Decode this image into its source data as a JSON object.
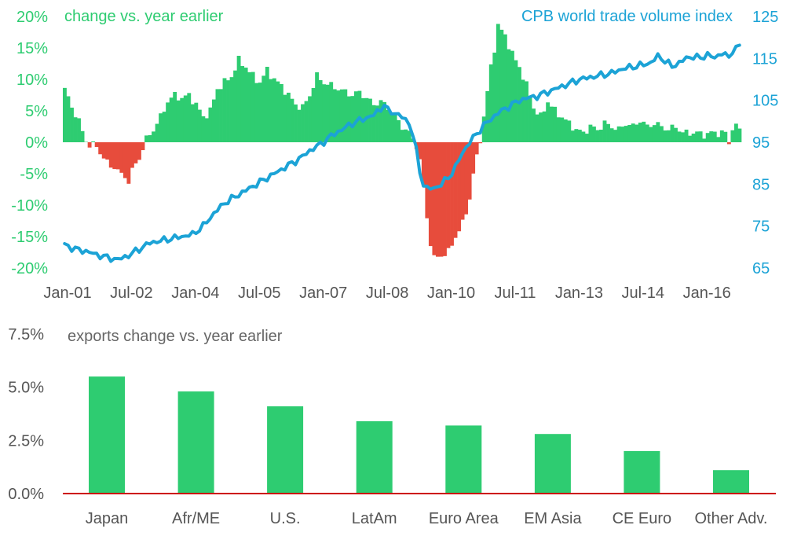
{
  "colors": {
    "positive": "#2ecc71",
    "negative": "#e74c3c",
    "index_line": "#1ca3d6",
    "baseline": "#cc0000",
    "gray_text": "#555555"
  },
  "chart_data": [
    {
      "type": "bar+line",
      "left_title": "change vs. year earlier",
      "right_title": "CPB world trade volume index",
      "left_ticks": [
        "20%",
        "15%",
        "10%",
        "5%",
        "0%",
        "-5%",
        "-10%",
        "-15%",
        "-20%"
      ],
      "left_tick_values": [
        20,
        15,
        10,
        5,
        0,
        -5,
        -10,
        -15,
        -20
      ],
      "ylim_left": [
        -20,
        20
      ],
      "right_ticks": [
        "125",
        "115",
        "105",
        "95",
        "85",
        "75",
        "65"
      ],
      "right_tick_values": [
        125,
        115,
        105,
        95,
        85,
        75,
        65
      ],
      "ylim_right": [
        65,
        125
      ],
      "x_ticks": [
        "Jan-01",
        "Jul-02",
        "Jan-04",
        "Jul-05",
        "Jan-07",
        "Jul-08",
        "Jan-10",
        "Jul-11",
        "Jan-13",
        "Jul-14",
        "Jan-16"
      ],
      "x_tick_months": [
        0,
        18,
        36,
        54,
        72,
        90,
        108,
        126,
        144,
        162,
        180
      ],
      "months": 191,
      "series_bars_name": "change vs. year earlier (%)",
      "series_line_name": "CPB world trade volume index",
      "bar_anchor_points": [
        [
          0,
          8.5
        ],
        [
          2,
          5.5
        ],
        [
          4,
          3.5
        ],
        [
          5,
          1.5
        ],
        [
          6,
          0.3
        ],
        [
          7,
          -0.5
        ],
        [
          8,
          -0.3
        ],
        [
          10,
          -1.5
        ],
        [
          11,
          -2.5
        ],
        [
          12,
          -3.2
        ],
        [
          13,
          -4.0
        ],
        [
          14,
          -3.8
        ],
        [
          15,
          -4.5
        ],
        [
          16,
          -5.2
        ],
        [
          17,
          -5.5
        ],
        [
          18,
          -6.2
        ],
        [
          19,
          -4.5
        ],
        [
          20,
          -3.5
        ],
        [
          21,
          -2.5
        ],
        [
          22,
          -1.0
        ],
        [
          23,
          0.5
        ],
        [
          25,
          2.0
        ],
        [
          27,
          4.0
        ],
        [
          29,
          6.5
        ],
        [
          31,
          7.5
        ],
        [
          33,
          7.0
        ],
        [
          35,
          7.5
        ],
        [
          37,
          6.0
        ],
        [
          39,
          4.0
        ],
        [
          41,
          5.0
        ],
        [
          43,
          8.5
        ],
        [
          45,
          9.5
        ],
        [
          47,
          10.5
        ],
        [
          49,
          13.0
        ],
        [
          51,
          12.0
        ],
        [
          53,
          10.5
        ],
        [
          55,
          9.5
        ],
        [
          57,
          11.5
        ],
        [
          59,
          10.0
        ],
        [
          61,
          9.0
        ],
        [
          63,
          7.5
        ],
        [
          65,
          6.0
        ],
        [
          67,
          5.5
        ],
        [
          69,
          7.5
        ],
        [
          71,
          10.5
        ],
        [
          73,
          9.5
        ],
        [
          75,
          9.0
        ],
        [
          77,
          8.5
        ],
        [
          79,
          8.0
        ],
        [
          81,
          7.5
        ],
        [
          83,
          8.0
        ],
        [
          85,
          7.0
        ],
        [
          87,
          6.0
        ],
        [
          89,
          6.5
        ],
        [
          91,
          5.5
        ],
        [
          93,
          4.0
        ],
        [
          95,
          2.5
        ],
        [
          97,
          1.5
        ],
        [
          98,
          0.5
        ],
        [
          99,
          -0.5
        ],
        [
          100,
          -3.0
        ],
        [
          101,
          -7.0
        ],
        [
          102,
          -12.0
        ],
        [
          103,
          -16.0
        ],
        [
          104,
          -18.5
        ],
        [
          106,
          -18.0
        ],
        [
          108,
          -17.5
        ],
        [
          110,
          -15.0
        ],
        [
          112,
          -13.0
        ],
        [
          114,
          -9.0
        ],
        [
          115,
          -5.0
        ],
        [
          116,
          -2.5
        ],
        [
          117,
          0.5
        ],
        [
          118,
          4.0
        ],
        [
          119,
          8.0
        ],
        [
          120,
          12.0
        ],
        [
          121,
          15.0
        ],
        [
          122,
          18.5
        ],
        [
          124,
          17.0
        ],
        [
          126,
          14.0
        ],
        [
          128,
          12.0
        ],
        [
          130,
          9.0
        ],
        [
          132,
          5.5
        ],
        [
          134,
          4.0
        ],
        [
          136,
          6.5
        ],
        [
          138,
          5.0
        ],
        [
          140,
          4.0
        ],
        [
          142,
          3.0
        ],
        [
          144,
          2.0
        ],
        [
          146,
          1.5
        ],
        [
          148,
          2.5
        ],
        [
          150,
          2.0
        ],
        [
          152,
          3.0
        ],
        [
          154,
          2.5
        ],
        [
          156,
          2.0
        ],
        [
          158,
          3.0
        ],
        [
          160,
          2.5
        ],
        [
          162,
          3.5
        ],
        [
          164,
          2.5
        ],
        [
          166,
          3.0
        ],
        [
          168,
          2.5
        ],
        [
          170,
          2.0
        ],
        [
          172,
          2.5
        ],
        [
          174,
          1.5
        ],
        [
          176,
          1.5
        ],
        [
          178,
          1.5
        ],
        [
          180,
          1.2
        ],
        [
          182,
          1.5
        ],
        [
          184,
          1.5
        ],
        [
          186,
          1.5
        ],
        [
          187,
          -0.3
        ],
        [
          188,
          2.5
        ],
        [
          190,
          2.2
        ]
      ],
      "line_anchor_points": [
        [
          0,
          70.5
        ],
        [
          3,
          69.5
        ],
        [
          6,
          69.0
        ],
        [
          9,
          68.2
        ],
        [
          12,
          67.5
        ],
        [
          15,
          67.0
        ],
        [
          18,
          68.0
        ],
        [
          21,
          69.5
        ],
        [
          24,
          71.0
        ],
        [
          27,
          71.5
        ],
        [
          30,
          72.0
        ],
        [
          33,
          72.5
        ],
        [
          36,
          73.0
        ],
        [
          39,
          75.0
        ],
        [
          42,
          78.0
        ],
        [
          45,
          80.5
        ],
        [
          48,
          82.0
        ],
        [
          51,
          83.5
        ],
        [
          54,
          85.0
        ],
        [
          57,
          86.5
        ],
        [
          60,
          88.0
        ],
        [
          63,
          89.5
        ],
        [
          66,
          91.0
        ],
        [
          69,
          93.0
        ],
        [
          72,
          94.5
        ],
        [
          75,
          96.5
        ],
        [
          78,
          98.0
        ],
        [
          81,
          99.5
        ],
        [
          84,
          100.5
        ],
        [
          87,
          101.5
        ],
        [
          89,
          103.0
        ],
        [
          90,
          104.0
        ],
        [
          91,
          102.5
        ],
        [
          93,
          102.0
        ],
        [
          95,
          101.0
        ],
        [
          97,
          99.5
        ],
        [
          98,
          97.0
        ],
        [
          99,
          93.0
        ],
        [
          100,
          88.0
        ],
        [
          101,
          85.0
        ],
        [
          102,
          84.0
        ],
        [
          104,
          84.0
        ],
        [
          106,
          85.0
        ],
        [
          108,
          86.5
        ],
        [
          110,
          89.0
        ],
        [
          112,
          92.5
        ],
        [
          114,
          95.0
        ],
        [
          116,
          97.0
        ],
        [
          118,
          99.0
        ],
        [
          120,
          100.5
        ],
        [
          122,
          102.0
        ],
        [
          124,
          103.0
        ],
        [
          126,
          104.0
        ],
        [
          128,
          105.0
        ],
        [
          130,
          105.5
        ],
        [
          133,
          106.0
        ],
        [
          136,
          107.0
        ],
        [
          139,
          108.0
        ],
        [
          142,
          109.0
        ],
        [
          145,
          110.0
        ],
        [
          148,
          110.5
        ],
        [
          151,
          111.0
        ],
        [
          154,
          111.5
        ],
        [
          157,
          112.5
        ],
        [
          160,
          113.0
        ],
        [
          163,
          113.5
        ],
        [
          165,
          114.0
        ],
        [
          167,
          115.5
        ],
        [
          169,
          114.5
        ],
        [
          171,
          113.0
        ],
        [
          173,
          114.0
        ],
        [
          175,
          115.0
        ],
        [
          177,
          115.5
        ],
        [
          179,
          115.0
        ],
        [
          181,
          116.0
        ],
        [
          183,
          115.0
        ],
        [
          185,
          116.5
        ],
        [
          187,
          115.0
        ],
        [
          188,
          117.0
        ],
        [
          190,
          118.0
        ]
      ]
    },
    {
      "type": "bar",
      "title": "exports change vs. year earlier",
      "categories": [
        "Japan",
        "Afr/ME",
        "U.S.",
        "LatAm",
        "Euro Area",
        "EM Asia",
        "CE Euro",
        "Other Adv."
      ],
      "values": [
        5.5,
        4.8,
        4.1,
        3.4,
        3.2,
        2.8,
        2.0,
        1.1
      ],
      "y_ticks": [
        "7.5%",
        "5.0%",
        "2.5%",
        "0.0%"
      ],
      "y_tick_values": [
        7.5,
        5.0,
        2.5,
        0.0
      ],
      "ylim": [
        0,
        7.5
      ]
    }
  ]
}
